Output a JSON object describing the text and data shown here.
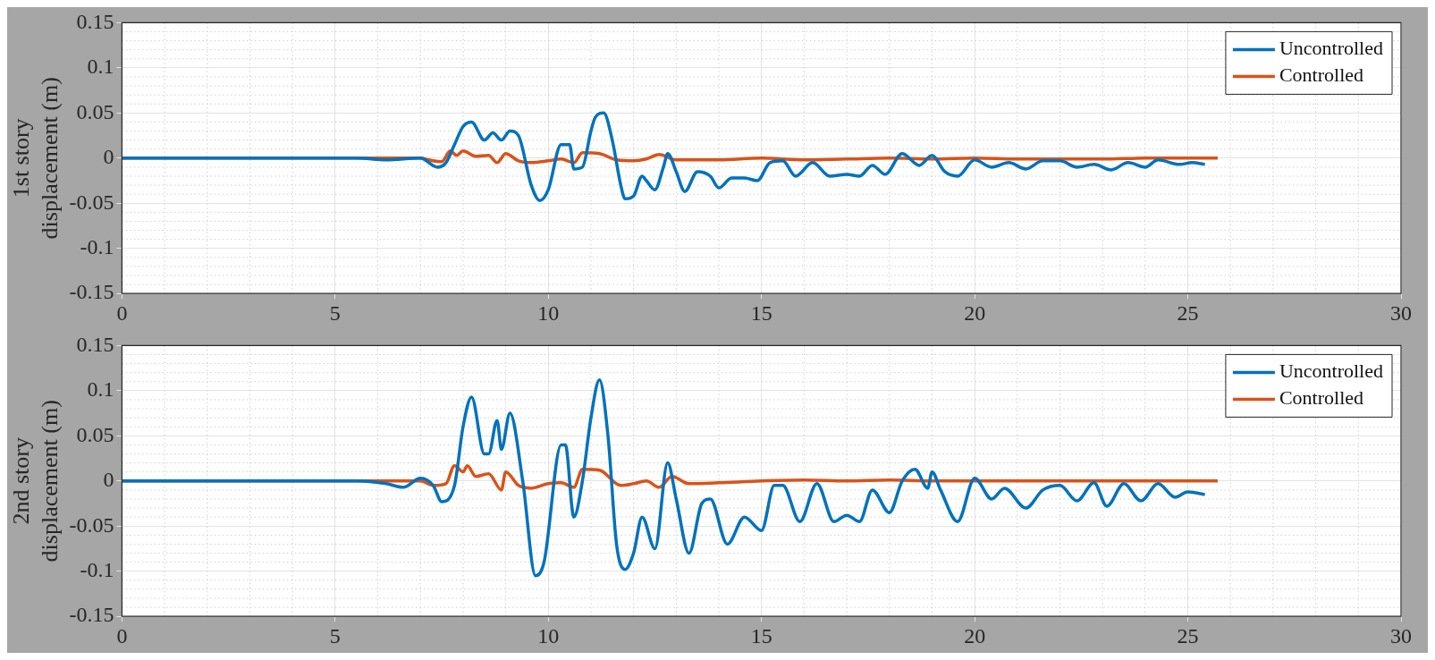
{
  "chart_data": [
    {
      "type": "line",
      "ylabel": "1st story\ndisplacement (m)",
      "xlim": [
        0,
        30
      ],
      "xticks": [
        0,
        5,
        10,
        15,
        20,
        25,
        30
      ],
      "ylim": [
        -0.15,
        0.15
      ],
      "yticks": [
        -0.15,
        -0.1,
        -0.05,
        0,
        0.05,
        0.1,
        0.15
      ],
      "grid": true,
      "legend": "top right",
      "line_style": "solid",
      "marker": "none",
      "series": [
        {
          "name": "Uncontrolled",
          "color": "#0072bd",
          "x": [
            0,
            5.5,
            6.2,
            7,
            7.4,
            7.6,
            7.8,
            8.0,
            8.2,
            8.5,
            8.7,
            8.9,
            9.1,
            9.3,
            9.6,
            9.8,
            10.0,
            10.3,
            10.5,
            10.6,
            10.8,
            11.0,
            11.1,
            11.3,
            11.5,
            11.7,
            11.8,
            12.0,
            12.2,
            12.3,
            12.5,
            12.7,
            12.8,
            13.0,
            13.2,
            13.5,
            13.8,
            14.0,
            14.3,
            14.6,
            14.9,
            15.2,
            15.5,
            15.8,
            16.2,
            16.6,
            17.0,
            17.3,
            17.6,
            17.9,
            18.3,
            18.7,
            19.0,
            19.3,
            19.6,
            20.0,
            20.4,
            20.8,
            21.2,
            21.6,
            22.0,
            22.4,
            22.8,
            23.2,
            23.6,
            24.0,
            24.3,
            24.8,
            25.1,
            25.4
          ],
          "values": [
            0,
            0,
            -0.002,
            0,
            -0.01,
            -0.005,
            0.015,
            0.035,
            0.04,
            0.02,
            0.028,
            0.02,
            0.03,
            0.025,
            -0.03,
            -0.047,
            -0.035,
            0.015,
            0.015,
            -0.012,
            -0.01,
            0.03,
            0.045,
            0.05,
            0.02,
            -0.03,
            -0.045,
            -0.042,
            -0.02,
            -0.025,
            -0.035,
            -0.01,
            0.005,
            -0.015,
            -0.037,
            -0.015,
            -0.02,
            -0.033,
            -0.022,
            -0.022,
            -0.025,
            -0.005,
            -0.003,
            -0.02,
            -0.005,
            -0.02,
            -0.018,
            -0.02,
            -0.008,
            -0.018,
            0.005,
            -0.008,
            0.003,
            -0.015,
            -0.02,
            -0.002,
            -0.01,
            -0.005,
            -0.012,
            -0.003,
            -0.003,
            -0.01,
            -0.007,
            -0.013,
            -0.005,
            -0.01,
            -0.002,
            -0.007,
            -0.005,
            -0.007
          ]
        },
        {
          "name": "Controlled",
          "color": "#d95319",
          "x": [
            0,
            7,
            7.2,
            7.5,
            7.7,
            7.85,
            8.0,
            8.3,
            8.6,
            8.8,
            9.0,
            9.3,
            9.6,
            10.0,
            10.3,
            10.6,
            10.8,
            11.2,
            11.6,
            12.0,
            12.3,
            12.6,
            13.0,
            14,
            15,
            16,
            17,
            18,
            19,
            20,
            21,
            22,
            23,
            24,
            25.7
          ],
          "values": [
            0,
            0,
            -0.002,
            -0.004,
            0.008,
            0.003,
            0.008,
            0.002,
            0.003,
            -0.005,
            0.005,
            -0.003,
            -0.005,
            -0.003,
            -0.001,
            -0.005,
            0.006,
            0.005,
            -0.002,
            -0.003,
            -0.001,
            0.004,
            -0.002,
            -0.002,
            0,
            -0.002,
            -0.001,
            0,
            -0.001,
            0,
            -0.001,
            -0.001,
            -0.001,
            0,
            0
          ]
        }
      ]
    },
    {
      "type": "line",
      "ylabel": "2nd story\ndisplacement (m)",
      "xlim": [
        0,
        30
      ],
      "xticks": [
        0,
        5,
        10,
        15,
        20,
        25,
        30
      ],
      "ylim": [
        -0.15,
        0.15
      ],
      "yticks": [
        -0.15,
        -0.1,
        -0.05,
        0,
        0.05,
        0.1,
        0.15
      ],
      "grid": true,
      "legend": "top right",
      "line_style": "solid",
      "marker": "none",
      "series": [
        {
          "name": "Uncontrolled",
          "color": "#0072bd",
          "x": [
            0,
            5.5,
            6.2,
            6.6,
            7.0,
            7.3,
            7.5,
            7.8,
            8.0,
            8.2,
            8.5,
            8.6,
            8.8,
            8.9,
            9.1,
            9.4,
            9.7,
            9.9,
            10.3,
            10.4,
            10.6,
            10.8,
            11.0,
            11.2,
            11.4,
            11.6,
            11.8,
            12.0,
            12.2,
            12.5,
            12.8,
            13.0,
            13.3,
            13.6,
            13.8,
            14.2,
            14.6,
            15.0,
            15.3,
            15.5,
            15.9,
            16.3,
            16.7,
            17.0,
            17.3,
            17.6,
            18.0,
            18.3,
            18.6,
            18.9,
            19.0,
            19.2,
            19.6,
            20.0,
            20.4,
            20.7,
            21.2,
            21.6,
            22.0,
            22.4,
            22.8,
            23.1,
            23.5,
            23.9,
            24.3,
            24.7,
            25.0,
            25.4
          ],
          "values": [
            0,
            0,
            -0.003,
            -0.007,
            0.003,
            -0.005,
            -0.023,
            -0.005,
            0.06,
            0.093,
            0.03,
            0.03,
            0.067,
            0.035,
            0.075,
            0.0,
            -0.105,
            -0.09,
            0.04,
            0.04,
            -0.04,
            0.0,
            0.07,
            0.112,
            0.05,
            -0.07,
            -0.098,
            -0.08,
            -0.04,
            -0.075,
            0.02,
            -0.02,
            -0.08,
            -0.025,
            -0.02,
            -0.07,
            -0.04,
            -0.055,
            -0.005,
            -0.005,
            -0.045,
            -0.003,
            -0.045,
            -0.038,
            -0.045,
            -0.01,
            -0.035,
            0.0,
            0.013,
            -0.008,
            0.01,
            -0.01,
            -0.045,
            0.003,
            -0.02,
            -0.008,
            -0.03,
            -0.01,
            -0.005,
            -0.022,
            -0.002,
            -0.028,
            -0.003,
            -0.022,
            -0.003,
            -0.018,
            -0.012,
            -0.015
          ]
        },
        {
          "name": "Controlled",
          "color": "#d95319",
          "x": [
            0,
            7,
            7.3,
            7.6,
            7.8,
            8.0,
            8.1,
            8.3,
            8.6,
            8.9,
            9.0,
            9.3,
            9.6,
            10.0,
            10.3,
            10.6,
            10.8,
            11.2,
            11.7,
            12.0,
            12.3,
            12.6,
            12.9,
            13.3,
            14,
            15,
            16,
            17,
            18,
            19,
            20,
            21,
            22,
            23,
            24,
            25.7
          ],
          "values": [
            0,
            0,
            -0.005,
            -0.003,
            0.017,
            0.01,
            0.017,
            0.005,
            0.008,
            -0.01,
            0.01,
            -0.005,
            -0.008,
            -0.003,
            -0.002,
            -0.007,
            0.013,
            0.012,
            -0.005,
            -0.003,
            0.0,
            -0.007,
            0.005,
            -0.003,
            -0.002,
            0.0,
            0.001,
            0,
            0.001,
            0,
            0,
            0,
            0,
            0,
            0,
            0
          ]
        }
      ]
    }
  ]
}
